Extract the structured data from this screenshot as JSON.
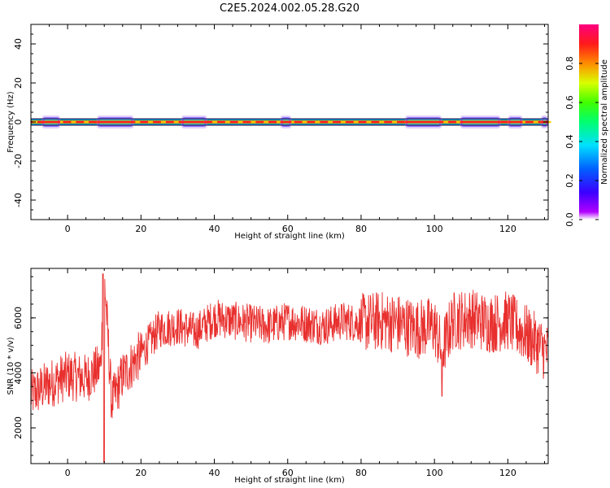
{
  "title": "C2E5.2024.002.05.28.G20",
  "colors": {
    "snr_line": "#e8302e",
    "axis": "#000000"
  },
  "chart_data": [
    {
      "type": "heatmap",
      "title": "C2E5.2024.002.05.28.G20",
      "xlabel": "Height of straight line (km)",
      "ylabel": "Frequency (Hz)",
      "xlim": [
        -10,
        131
      ],
      "ylim": [
        -50,
        50
      ],
      "x_ticks": [
        0,
        20,
        40,
        60,
        80,
        100,
        120
      ],
      "y_ticks": [
        -40,
        -20,
        0,
        20,
        40
      ],
      "colorbar": {
        "label": "Normalized spectral amplitude",
        "ticks": [
          "0.0",
          "0.2",
          "0.4",
          "0.6",
          "0.8"
        ],
        "range": [
          0,
          1
        ],
        "colormap": "gist_rainbow_r"
      },
      "signal_band_center_hz": 0,
      "sidelobe_regions_km": [
        [
          -7,
          -2
        ],
        [
          8,
          18
        ],
        [
          31,
          38
        ],
        [
          58,
          61
        ],
        [
          92,
          102
        ],
        [
          107,
          118
        ],
        [
          120,
          124
        ],
        [
          129,
          131
        ]
      ],
      "grid": false
    },
    {
      "type": "line",
      "xlabel": "Height of straight line (km)",
      "ylabel": "SNR (10 * v/v)",
      "xlim": [
        -10,
        131
      ],
      "ylim": [
        700,
        7800
      ],
      "x_ticks": [
        0,
        20,
        40,
        60,
        80,
        100,
        120
      ],
      "y_ticks": [
        2000,
        4000,
        6000
      ],
      "series": [
        {
          "x": [
            -10,
            -5,
            0,
            5,
            9,
            10,
            12,
            15,
            20,
            25,
            30,
            35,
            40,
            45,
            50,
            55,
            60,
            65,
            70,
            75,
            80,
            85,
            90,
            95,
            100,
            102,
            105,
            110,
            115,
            120,
            125,
            131
          ],
          "y": [
            3200,
            3600,
            3900,
            3800,
            4200,
            7600,
            2900,
            3900,
            4700,
            5600,
            5700,
            5500,
            6000,
            5900,
            5800,
            5700,
            5900,
            5800,
            5700,
            5900,
            5800,
            5900,
            5800,
            5600,
            5700,
            4800,
            5900,
            6000,
            5800,
            5900,
            5400,
            4700
          ]
        }
      ],
      "grid": false
    }
  ]
}
